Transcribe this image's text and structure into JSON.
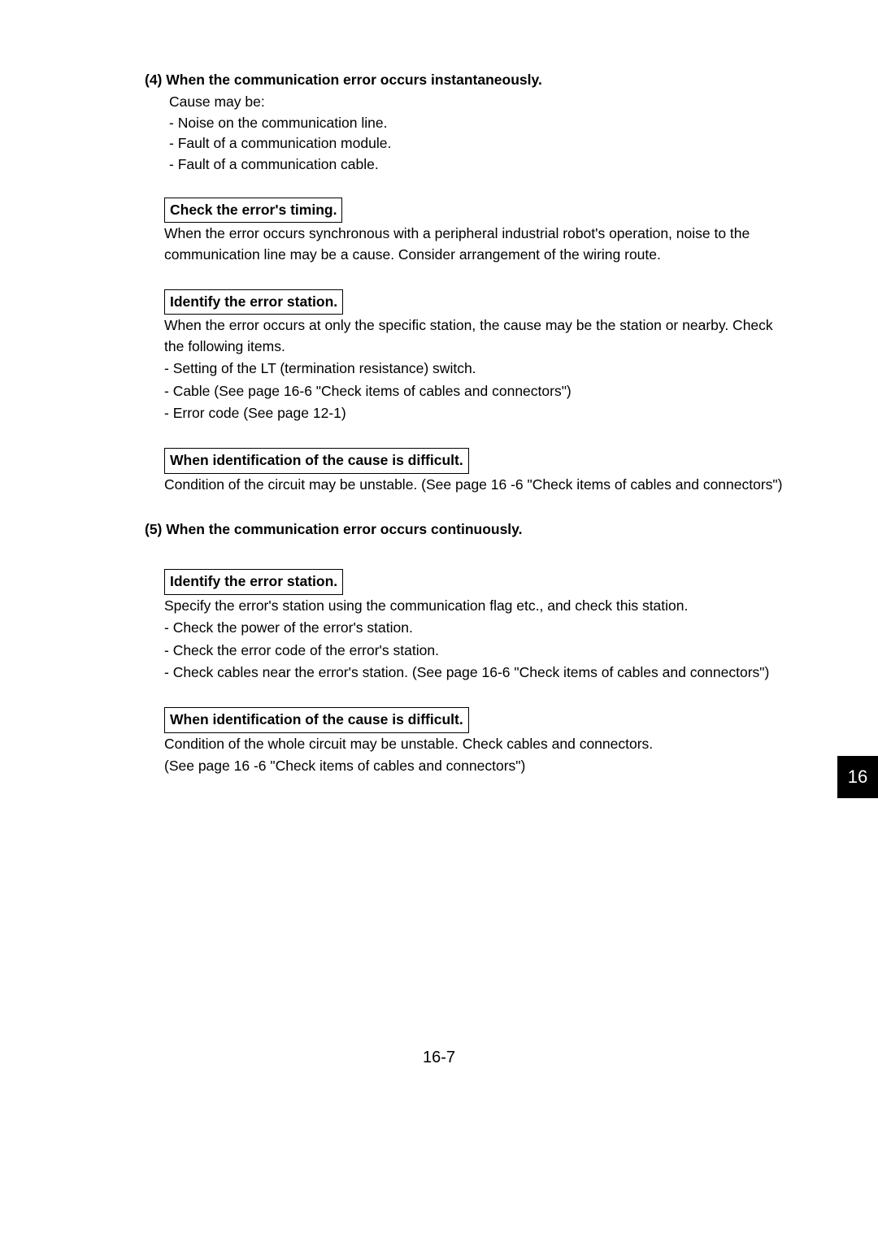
{
  "section4": {
    "num": "(4)",
    "title": "When the communication error occurs instantaneously.",
    "intro": "Cause may be:",
    "causes": [
      "-  Noise on the communication line.",
      "-  Fault of a communication module.",
      "-  Fault of a communication cable."
    ],
    "box1": "Check the error's timing.",
    "p1": "When the error occurs synchronous with a peripheral industrial robot's operation, noise to the communication line may be a cause. Consider arrangement of the wiring route.",
    "box2": "Identify the error station.",
    "p2": "When the error occurs at only the specific station, the cause may be the station or nearby. Check the following items.",
    "items2": [
      "-  Setting of the LT (termination resistance) switch.",
      "-  Cable (See page 16-6 \"Check items of cables and connectors\")",
      "-  Error code (See page 12-1)"
    ],
    "box3": "When identification of the cause is difficult.",
    "p3": "Condition of the circuit may be unstable. (See page 16 -6 \"Check items of cables and connectors\")"
  },
  "section5": {
    "num": "(5)",
    "title": "When the communication error occurs continuously.",
    "box1": "Identify the error station.",
    "p1": "Specify the error's station using the communication flag etc., and check this station.",
    "items1": [
      "-  Check the power of the error's station.",
      "-  Check the error code of the error's station.",
      "-  Check cables near the error's station. (See page 16-6 \"Check items of cables and connectors\")"
    ],
    "box2": "When identification of the cause is difficult.",
    "p2a": "Condition of the whole circuit may be unstable. Check cables and connectors.",
    "p2b": "(See page 16 -6 \"Check items of cables and connectors\")"
  },
  "sideTab": "16",
  "pageNum": "16-7"
}
